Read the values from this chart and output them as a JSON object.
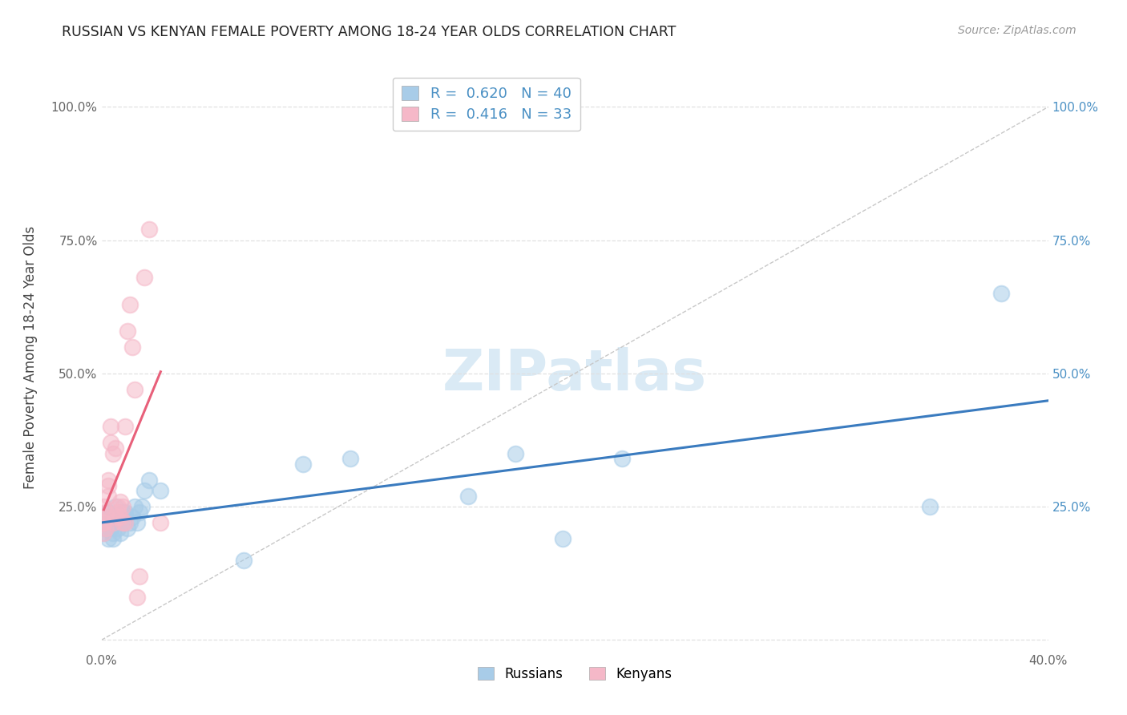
{
  "title": "RUSSIAN VS KENYAN FEMALE POVERTY AMONG 18-24 YEAR OLDS CORRELATION CHART",
  "source": "Source: ZipAtlas.com",
  "ylabel": "Female Poverty Among 18-24 Year Olds",
  "xlim": [
    0.0,
    0.4
  ],
  "ylim": [
    -0.02,
    1.08
  ],
  "russian_R": 0.62,
  "russian_N": 40,
  "kenyan_R": 0.416,
  "kenyan_N": 33,
  "russian_color": "#a8cce8",
  "kenyan_color": "#f5b8c8",
  "russian_line_color": "#3a7bbf",
  "kenyan_line_color": "#e8607a",
  "diagonal_color": "#c8c8c8",
  "background_color": "#ffffff",
  "grid_color": "#e0e0e0",
  "watermark_color": "#daeaf5",
  "russians_x": [
    0.001,
    0.001,
    0.002,
    0.002,
    0.003,
    0.003,
    0.003,
    0.004,
    0.004,
    0.005,
    0.005,
    0.005,
    0.006,
    0.006,
    0.007,
    0.007,
    0.008,
    0.008,
    0.009,
    0.009,
    0.01,
    0.011,
    0.012,
    0.013,
    0.014,
    0.015,
    0.016,
    0.017,
    0.018,
    0.02,
    0.025,
    0.06,
    0.085,
    0.105,
    0.155,
    0.175,
    0.195,
    0.22,
    0.35,
    0.38
  ],
  "russians_y": [
    0.22,
    0.2,
    0.21,
    0.23,
    0.19,
    0.22,
    0.24,
    0.21,
    0.23,
    0.2,
    0.22,
    0.19,
    0.23,
    0.25,
    0.21,
    0.22,
    0.23,
    0.2,
    0.24,
    0.22,
    0.24,
    0.21,
    0.22,
    0.23,
    0.25,
    0.22,
    0.24,
    0.25,
    0.28,
    0.3,
    0.28,
    0.15,
    0.33,
    0.34,
    0.27,
    0.35,
    0.19,
    0.34,
    0.25,
    0.65
  ],
  "kenyans_x": [
    0.001,
    0.001,
    0.001,
    0.001,
    0.002,
    0.002,
    0.002,
    0.003,
    0.003,
    0.003,
    0.004,
    0.004,
    0.005,
    0.005,
    0.006,
    0.006,
    0.007,
    0.007,
    0.008,
    0.008,
    0.009,
    0.009,
    0.01,
    0.01,
    0.011,
    0.012,
    0.013,
    0.014,
    0.015,
    0.016,
    0.018,
    0.02,
    0.025
  ],
  "kenyans_y": [
    0.22,
    0.25,
    0.2,
    0.22,
    0.23,
    0.21,
    0.24,
    0.3,
    0.27,
    0.29,
    0.37,
    0.4,
    0.35,
    0.22,
    0.36,
    0.23,
    0.24,
    0.25,
    0.26,
    0.23,
    0.25,
    0.22,
    0.4,
    0.22,
    0.58,
    0.63,
    0.55,
    0.47,
    0.08,
    0.12,
    0.68,
    0.77,
    0.22
  ]
}
